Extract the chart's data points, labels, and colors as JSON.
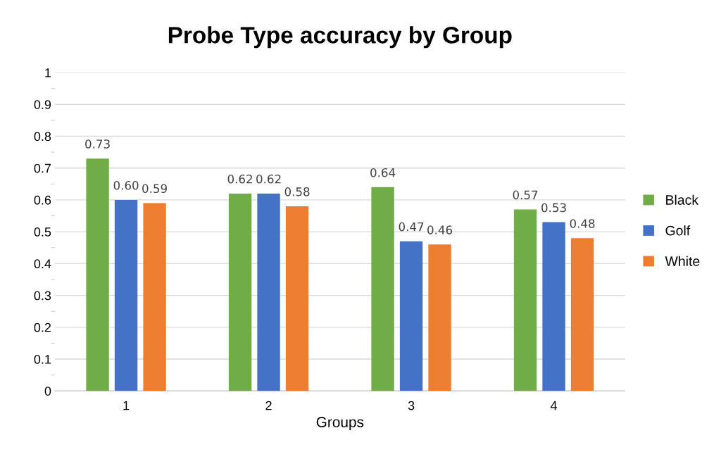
{
  "chart_data": {
    "type": "bar",
    "title": "Probe Type accuracy by Group",
    "xlabel": "Groups",
    "categories": [
      "1",
      "2",
      "3",
      "4"
    ],
    "series": [
      {
        "name": "Black",
        "color": "#70ad47",
        "values": [
          0.73,
          0.62,
          0.64,
          0.57
        ],
        "value_labels": [
          "0.73",
          "0.62",
          "0.64",
          "0.57"
        ]
      },
      {
        "name": "Golf",
        "color": "#4472c4",
        "values": [
          0.6,
          0.62,
          0.47,
          0.53
        ],
        "value_labels": [
          "0.60",
          "0.62",
          "0.47",
          "0.53"
        ]
      },
      {
        "name": "White",
        "color": "#ed7d31",
        "values": [
          0.59,
          0.58,
          0.46,
          0.48
        ],
        "value_labels": [
          "0.59",
          "0.58",
          "0.46",
          "0.48"
        ]
      }
    ],
    "ylim": [
      0,
      1
    ],
    "yticks": [
      0,
      0.1,
      0.2,
      0.3,
      0.4,
      0.5,
      0.6,
      0.7,
      0.8,
      0.9,
      1
    ],
    "grid": "y",
    "legend": "right"
  }
}
